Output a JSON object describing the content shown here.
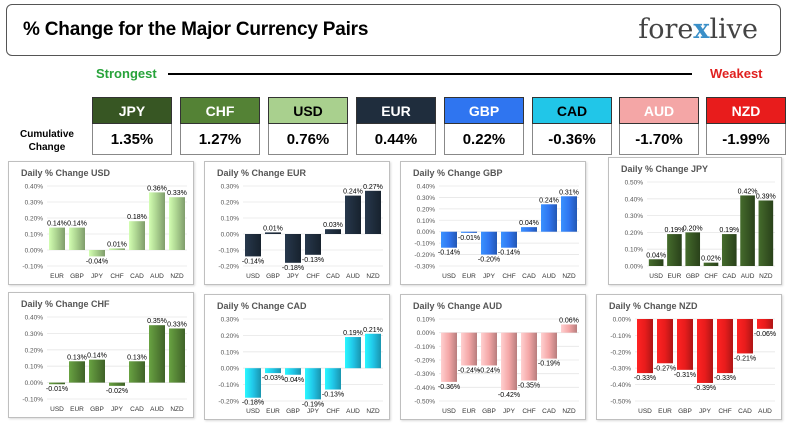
{
  "header": {
    "title": "% Change for the Major Currency Pairs",
    "logo_left": "fore",
    "logo_x": "x",
    "logo_right": "live"
  },
  "scale": {
    "strongest": "Strongest",
    "weakest": "Weakest",
    "cumulative_label_1": "Cumulative",
    "cumulative_label_2": "Change"
  },
  "currencies": [
    {
      "code": "JPY",
      "value": "1.35%",
      "head_color": "#375623",
      "head_text": "#ffffff"
    },
    {
      "code": "CHF",
      "value": "1.27%",
      "head_color": "#548235",
      "head_text": "#ffffff"
    },
    {
      "code": "USD",
      "value": "0.76%",
      "head_color": "#a9d08e",
      "head_text": "#000000"
    },
    {
      "code": "EUR",
      "value": "0.44%",
      "head_color": "#1f2d3d",
      "head_text": "#ffffff"
    },
    {
      "code": "GBP",
      "value": "0.22%",
      "head_color": "#2f75f0",
      "head_text": "#ffffff"
    },
    {
      "code": "CAD",
      "value": "-0.36%",
      "head_color": "#21c6e8",
      "head_text": "#000000"
    },
    {
      "code": "AUD",
      "value": "-1.70%",
      "head_color": "#f4a6a6",
      "head_text": "#ffffff"
    },
    {
      "code": "NZD",
      "value": "-1.99%",
      "head_color": "#e81c1c",
      "head_text": "#ffffff"
    }
  ],
  "chart_data": [
    {
      "type": "bar",
      "title": "Daily % Change USD",
      "color": "#a9d08e",
      "categories": [
        "EUR",
        "GBP",
        "JPY",
        "CHF",
        "CAD",
        "AUD",
        "NZD"
      ],
      "values": [
        0.14,
        0.14,
        -0.04,
        0.01,
        0.18,
        0.36,
        0.33
      ],
      "labels": [
        "0.14%",
        "0.14%",
        "-0.04%",
        "0.01%",
        "0.18%",
        "0.36%",
        "0.33%"
      ],
      "ylim": [
        -0.1,
        0.4
      ],
      "ticks": [
        0.4,
        0.3,
        0.2,
        0.1,
        0.0,
        -0.1
      ],
      "tick_labels": [
        "0.40%",
        "0.30%",
        "0.20%",
        "0.10%",
        "0.00%",
        "-0.10%"
      ]
    },
    {
      "type": "bar",
      "title": "Daily % Change EUR",
      "color": "#1f2d3d",
      "categories": [
        "USD",
        "GBP",
        "JPY",
        "CHF",
        "CAD",
        "AUD",
        "NZD"
      ],
      "values": [
        -0.14,
        0.01,
        -0.18,
        -0.13,
        0.03,
        0.24,
        0.27
      ],
      "labels": [
        "-0.14%",
        "0.01%",
        "-0.18%",
        "-0.13%",
        "0.03%",
        "0.24%",
        "0.27%"
      ],
      "ylim": [
        -0.2,
        0.3
      ],
      "ticks": [
        0.3,
        0.2,
        0.1,
        0.0,
        -0.1,
        -0.2
      ],
      "tick_labels": [
        "0.30%",
        "0.20%",
        "0.10%",
        "0.00%",
        "-0.10%",
        "-0.20%"
      ]
    },
    {
      "type": "bar",
      "title": "Daily % Change GBP",
      "color": "#2f75f0",
      "categories": [
        "USD",
        "EUR",
        "JPY",
        "CHF",
        "CAD",
        "AUD",
        "NZD"
      ],
      "values": [
        -0.14,
        -0.01,
        -0.2,
        -0.14,
        0.04,
        0.24,
        0.31
      ],
      "labels": [
        "-0.14%",
        "-0.01%",
        "-0.20%",
        "-0.14%",
        "0.04%",
        "0.24%",
        "0.31%"
      ],
      "ylim": [
        -0.3,
        0.4
      ],
      "ticks": [
        0.4,
        0.3,
        0.2,
        0.1,
        0.0,
        -0.1,
        -0.2,
        -0.3
      ],
      "tick_labels": [
        "0.40%",
        "0.30%",
        "0.20%",
        "0.10%",
        "0.00%",
        "-0.10%",
        "-0.20%",
        "-0.30%"
      ]
    },
    {
      "type": "bar",
      "title": "Daily % Change JPY",
      "color": "#375623",
      "categories": [
        "USD",
        "EUR",
        "GBP",
        "CHF",
        "CAD",
        "AUD",
        "NZD"
      ],
      "values": [
        0.04,
        0.19,
        0.2,
        0.02,
        0.19,
        0.42,
        0.39
      ],
      "labels": [
        "0.04%",
        "0.19%",
        "0.20%",
        "0.02%",
        "0.19%",
        "0.42%",
        "0.39%"
      ],
      "ylim": [
        0.0,
        0.5
      ],
      "ticks": [
        0.5,
        0.4,
        0.3,
        0.2,
        0.1,
        0.0
      ],
      "tick_labels": [
        "0.50%",
        "0.40%",
        "0.30%",
        "0.20%",
        "0.10%",
        "0.00%"
      ]
    },
    {
      "type": "bar",
      "title": "Daily % Change CHF",
      "color": "#548235",
      "categories": [
        "USD",
        "EUR",
        "GBP",
        "JPY",
        "CAD",
        "AUD",
        "NZD"
      ],
      "values": [
        -0.01,
        0.13,
        0.14,
        -0.02,
        0.13,
        0.35,
        0.33
      ],
      "labels": [
        "-0.01%",
        "0.13%",
        "0.14%",
        "-0.02%",
        "0.13%",
        "0.35%",
        "0.33%"
      ],
      "ylim": [
        -0.1,
        0.4
      ],
      "ticks": [
        0.4,
        0.3,
        0.2,
        0.1,
        0.0,
        -0.1
      ],
      "tick_labels": [
        "0.40%",
        "0.30%",
        "0.20%",
        "0.10%",
        "0.00%",
        "-0.10%"
      ]
    },
    {
      "type": "bar",
      "title": "Daily % Change CAD",
      "color": "#21c6e8",
      "categories": [
        "USD",
        "EUR",
        "GBP",
        "JPY",
        "CHF",
        "AUD",
        "NZD"
      ],
      "values": [
        -0.18,
        -0.03,
        -0.04,
        -0.19,
        -0.13,
        0.19,
        0.21
      ],
      "labels": [
        "-0.18%",
        "-0.03%",
        "-0.04%",
        "-0.19%",
        "-0.13%",
        "0.19%",
        "0.21%"
      ],
      "ylim": [
        -0.2,
        0.3
      ],
      "ticks": [
        0.3,
        0.2,
        0.1,
        0.0,
        -0.1,
        -0.2
      ],
      "tick_labels": [
        "0.30%",
        "0.20%",
        "0.10%",
        "0.00%",
        "-0.10%",
        "-0.20%"
      ]
    },
    {
      "type": "bar",
      "title": "Daily % Change AUD",
      "color": "#f4a6a6",
      "categories": [
        "USD",
        "EUR",
        "GBP",
        "JPY",
        "CHF",
        "CAD",
        "NZD"
      ],
      "values": [
        -0.36,
        -0.24,
        -0.24,
        -0.42,
        -0.35,
        -0.19,
        0.06
      ],
      "labels": [
        "-0.36%",
        "-0.24%",
        "-0.24%",
        "-0.42%",
        "-0.35%",
        "-0.19%",
        "0.06%"
      ],
      "ylim": [
        -0.5,
        0.1
      ],
      "ticks": [
        0.1,
        0.0,
        -0.1,
        -0.2,
        -0.3,
        -0.4,
        -0.5
      ],
      "tick_labels": [
        "0.10%",
        "0.00%",
        "-0.10%",
        "-0.20%",
        "-0.30%",
        "-0.40%",
        "-0.50%"
      ]
    },
    {
      "type": "bar",
      "title": "Daily % Change NZD",
      "color": "#e81c1c",
      "categories": [
        "USD",
        "EUR",
        "GBP",
        "JPY",
        "CHF",
        "CAD",
        "AUD"
      ],
      "values": [
        -0.33,
        -0.27,
        -0.31,
        -0.39,
        -0.33,
        -0.21,
        -0.06
      ],
      "labels": [
        "-0.33%",
        "-0.27%",
        "-0.31%",
        "-0.39%",
        "-0.33%",
        "-0.21%",
        "-0.06%"
      ],
      "ylim": [
        -0.5,
        0.0
      ],
      "ticks": [
        0.0,
        -0.1,
        -0.2,
        -0.3,
        -0.4,
        -0.5
      ],
      "tick_labels": [
        "0.00%",
        "-0.10%",
        "-0.20%",
        "-0.30%",
        "-0.40%",
        "-0.50%"
      ]
    }
  ]
}
